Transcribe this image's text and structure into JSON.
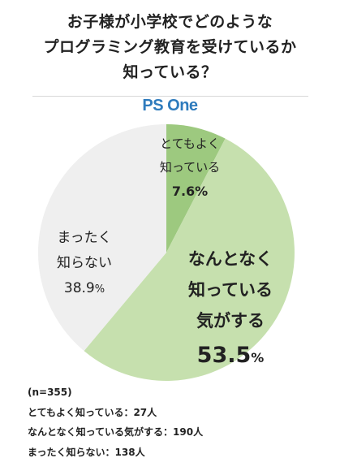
{
  "title_lines": [
    "お子様が小学校でどのような",
    "プログラミング教育を受けているか",
    "知っている？"
  ],
  "brand": "PS One",
  "colors": {
    "dark_green": "#9dc97f",
    "light_green": "#c6e0ae",
    "light_gray": "#efefef",
    "brand_blue": "#2e7bbd"
  },
  "chart_data": {
    "type": "pie",
    "title": "お子様が小学校でどのようなプログラミング教育を受けているか知っている？",
    "slices": [
      {
        "label_lines": [
          "とてもよく",
          "知っている"
        ],
        "value": 7.6,
        "value_text": "7.6%",
        "count": 27,
        "color": "#9dc97f"
      },
      {
        "label_lines": [
          "なんとなく",
          "知っている",
          "気がする"
        ],
        "value": 53.5,
        "value_num": "53.5",
        "value_unit": "%",
        "count": 190,
        "color": "#c6e0ae"
      },
      {
        "label_lines": [
          "まったく",
          "知らない"
        ],
        "value": 38.9,
        "value_num": "38.9",
        "value_unit": "%",
        "count": 138,
        "color": "#efefef"
      }
    ],
    "start_angle": "12 o'clock",
    "direction": "clockwise"
  },
  "notes": [
    "(n=355)",
    "とてもよく知っている：27人",
    "なんとなく知っている気がする：190人",
    "まったく知らない：138人"
  ]
}
